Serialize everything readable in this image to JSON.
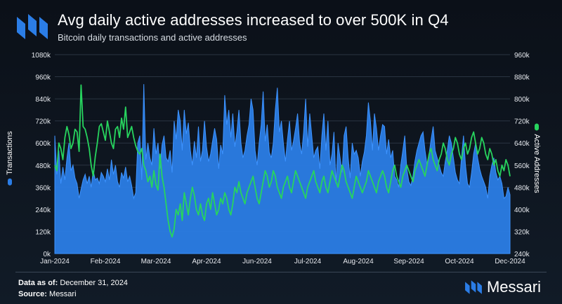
{
  "header": {
    "title": "Avg daily active addresses increased to over 500K in Q4",
    "subtitle": "Bitcoin daily transactions and active addresses"
  },
  "footer": {
    "data_as_of_label": "Data as of:",
    "data_as_of_value": "December 31, 2024",
    "source_label": "Source:",
    "source_value": "Messari",
    "brand": "Messari"
  },
  "colors": {
    "transactions": "#2b7de6",
    "active_addresses": "#27d45e",
    "grid": "#2a3442",
    "text": "#ffffff"
  },
  "chart_data": {
    "type": "area+line",
    "title": "Avg daily active addresses increased to over 500K in Q4",
    "subtitle": "Bitcoin daily transactions and active addresses",
    "x_tick_labels": [
      "Jan-2024",
      "Feb-2024",
      "Mar-2024",
      "Apr-2024",
      "Jun-2024",
      "Jul-2024",
      "Aug-2024",
      "Sep-2024",
      "Oct-2024",
      "Dec-2024"
    ],
    "x_range": [
      "2024-01-01",
      "2024-12-31"
    ],
    "y_left": {
      "label": "Transactions",
      "tick_labels": [
        "0k",
        "120k",
        "240k",
        "360k",
        "480k",
        "600k",
        "720k",
        "840k",
        "960k",
        "1080k"
      ],
      "range": [
        0,
        1080000
      ]
    },
    "y_right": {
      "label": "Active Addresses",
      "tick_labels": [
        "240k",
        "320k",
        "400k",
        "480k",
        "560k",
        "640k",
        "720k",
        "800k",
        "880k",
        "960k"
      ],
      "range": [
        240000,
        960000
      ]
    },
    "series": [
      {
        "name": "Transactions",
        "type": "area",
        "axis": "left",
        "color": "#2b7de6",
        "unit": "k",
        "values": [
          640,
          430,
          560,
          380,
          470,
          400,
          520,
          600,
          450,
          480,
          410,
          380,
          300,
          350,
          400,
          430,
          380,
          420,
          360,
          450,
          400,
          410,
          380,
          440,
          420,
          390,
          460,
          400,
          510,
          430,
          480,
          390,
          360,
          440,
          410,
          470,
          390,
          420,
          370,
          300,
          330,
          600,
          640,
          400,
          920,
          510,
          600,
          520,
          480,
          680,
          540,
          600,
          460,
          590,
          640,
          520,
          500,
          560,
          440,
          720,
          620,
          780,
          720,
          560,
          780,
          650,
          710,
          560,
          480,
          610,
          520,
          690,
          500,
          560,
          720,
          580,
          500,
          540,
          610,
          680,
          620,
          460,
          590,
          540,
          860,
          700,
          780,
          630,
          760,
          580,
          660,
          780,
          600,
          520,
          560,
          640,
          700,
          840,
          780,
          560,
          480,
          600,
          700,
          880,
          610,
          700,
          550,
          520,
          600,
          780,
          900,
          660,
          720,
          600,
          500,
          620,
          720,
          560,
          610,
          680,
          760,
          600,
          540,
          660,
          840,
          580,
          760,
          640,
          520,
          560,
          580,
          460,
          640,
          760,
          560,
          720,
          480,
          540,
          660,
          380,
          600,
          520,
          440,
          640,
          690,
          520,
          410,
          600,
          540,
          560,
          520,
          420,
          500,
          550,
          640,
          820,
          720,
          560,
          760,
          680,
          560,
          640,
          700,
          690,
          540,
          620,
          520,
          560,
          420,
          400,
          360,
          480,
          560,
          640,
          460,
          390,
          370,
          420,
          500,
          560,
          600,
          640,
          660,
          560,
          480,
          540,
          620,
          690,
          560,
          520,
          480,
          440,
          420,
          500,
          560,
          640,
          600,
          520,
          440,
          400,
          380,
          520,
          640,
          480,
          380,
          360,
          440,
          540,
          600,
          520,
          460,
          420,
          390,
          360,
          300,
          420,
          480,
          520,
          440,
          400,
          420,
          380,
          300,
          310,
          360,
          320
        ]
      },
      {
        "name": "Active Addresses",
        "type": "line",
        "axis": "right",
        "color": "#27d45e",
        "unit": "k",
        "values": [
          560,
          540,
          640,
          620,
          580,
          660,
          700,
          670,
          620,
          640,
          690,
          680,
          610,
          850,
          700,
          690,
          660,
          620,
          560,
          520,
          590,
          640,
          700,
          710,
          680,
          650,
          720,
          680,
          640,
          620,
          690,
          700,
          660,
          730,
          690,
          770,
          660,
          680,
          700,
          660,
          630,
          610,
          600,
          620,
          560,
          540,
          500,
          520,
          480,
          540,
          490,
          470,
          600,
          520,
          480,
          420,
          360,
          320,
          300,
          330,
          400,
          380,
          420,
          360,
          460,
          420,
          380,
          440,
          480,
          450,
          400,
          380,
          420,
          380,
          360,
          420,
          440,
          400,
          460,
          420,
          380,
          400,
          440,
          420,
          460,
          440,
          400,
          380,
          420,
          480,
          460,
          500,
          460,
          440,
          420,
          460,
          480,
          500,
          520,
          480,
          440,
          420,
          460,
          500,
          540,
          520,
          480,
          500,
          540,
          520,
          480,
          460,
          440,
          480,
          500,
          520,
          480,
          460,
          500,
          540,
          520,
          500,
          480,
          460,
          440,
          480,
          500,
          520,
          540,
          500,
          480,
          460,
          500,
          520,
          480,
          460,
          500,
          540,
          520,
          500,
          480,
          520,
          560,
          540,
          500,
          480,
          460,
          440,
          480,
          520,
          500,
          480,
          460,
          480,
          500,
          540,
          520,
          500,
          480,
          460,
          500,
          520,
          540,
          520,
          480,
          460,
          500,
          540,
          560,
          520,
          500,
          480,
          520,
          540,
          560,
          540,
          520,
          500,
          540,
          560,
          580,
          560,
          540,
          520,
          560,
          600,
          620,
          580,
          560,
          540,
          580,
          600,
          640,
          620,
          580,
          560,
          600,
          620,
          660,
          640,
          600,
          580,
          620,
          640,
          600,
          620,
          660,
          680,
          640,
          600,
          620,
          660,
          640,
          600,
          580,
          620,
          600,
          560,
          580,
          540,
          520,
          560,
          540,
          580,
          560,
          520
        ]
      }
    ],
    "legend": "axis-titles"
  }
}
